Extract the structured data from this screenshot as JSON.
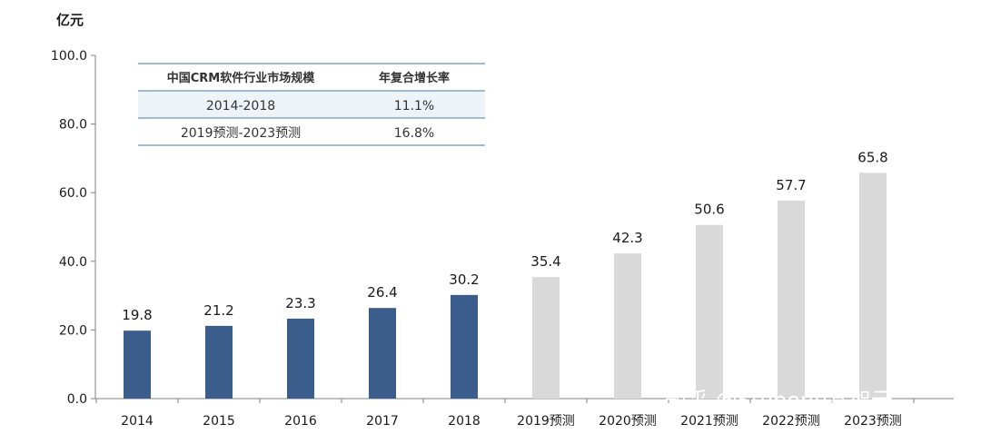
{
  "chart_data": {
    "type": "bar",
    "unit_label": "亿元",
    "categories": [
      "2014",
      "2015",
      "2016",
      "2017",
      "2018",
      "2019预测",
      "2020预测",
      "2021预测",
      "2022预测",
      "2023预测"
    ],
    "values": [
      19.8,
      21.2,
      23.3,
      26.4,
      30.2,
      35.4,
      42.3,
      50.6,
      57.7,
      65.8
    ],
    "value_labels": [
      "19.8",
      "21.2",
      "23.3",
      "26.4",
      "30.2",
      "35.4",
      "42.3",
      "50.6",
      "57.7",
      "65.8"
    ],
    "ylim": [
      0,
      100
    ],
    "yticks": [
      "0.0",
      "20.0",
      "40.0",
      "60.0",
      "80.0",
      "100.0"
    ],
    "actual_color": "#3a5d8c",
    "forecast_color": "#d9d9d9",
    "forecast_start_index": 5,
    "grid": false,
    "legend": "none"
  },
  "table": {
    "headers": [
      "中国CRM软件行业市场规模",
      "年复合增长率"
    ],
    "rows": [
      [
        "2014-2018",
        "11.1%"
      ],
      [
        "2019预测-2023预测",
        "16.8%"
      ]
    ],
    "line_color": "#7fa6c9",
    "highlight_row_color": "#eef3f8"
  },
  "watermark": "知乎 @Stepone基智云"
}
